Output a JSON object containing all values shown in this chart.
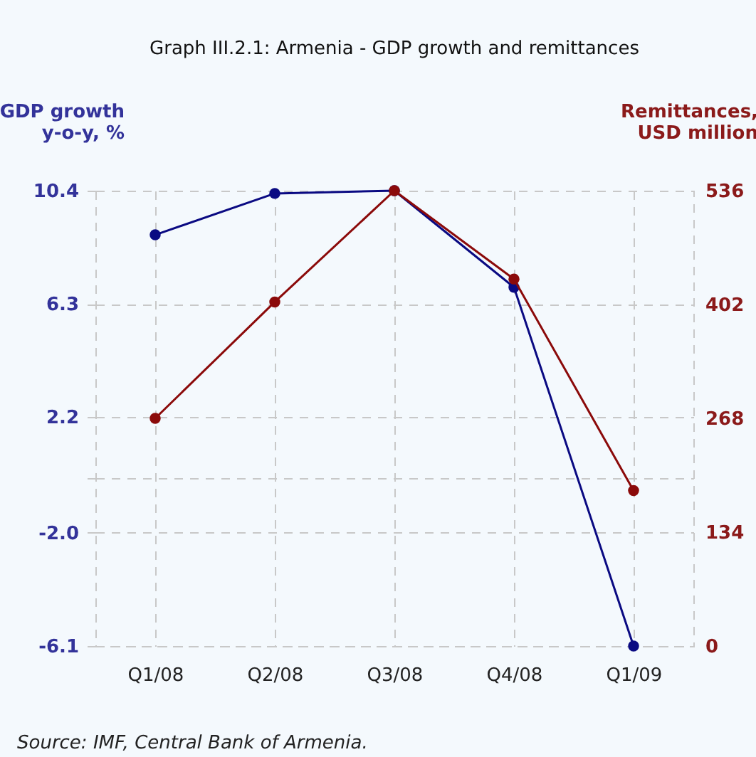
{
  "chart_data": {
    "type": "line",
    "title": "Graph III.2.1: Armenia - GDP growth and remittances",
    "categories": [
      "Q1/08",
      "Q2/08",
      "Q3/08",
      "Q4/08",
      "Q1/09"
    ],
    "series": [
      {
        "color": "#0a0a82",
        "values": [
          8.8,
          10.3,
          10.4,
          6.9,
          -6.1
        ]
      },
      {
        "color": "#8b0a0a",
        "axis": "y2",
        "values": [
          268,
          405,
          536,
          432,
          183
        ]
      }
    ],
    "ylabel": "GDP growth y-o-y, %",
    "y2label": "Remittances, USD million",
    "ylim": [
      -6.1,
      10.4
    ],
    "yticks": [
      10.4,
      6.3,
      2.2,
      {
        "value": 0,
        "label": null
      },
      {
        "value": -2,
        "label": "-2.0"
      },
      -6.1
    ],
    "y2lim": [
      0,
      536
    ],
    "y2ticks": [
      0,
      134,
      268,
      402,
      536
    ],
    "grid": true,
    "marker": "circle",
    "line_style": "solid",
    "annotations": [
      "Source: IMF, Central Bank of Armenia."
    ]
  }
}
